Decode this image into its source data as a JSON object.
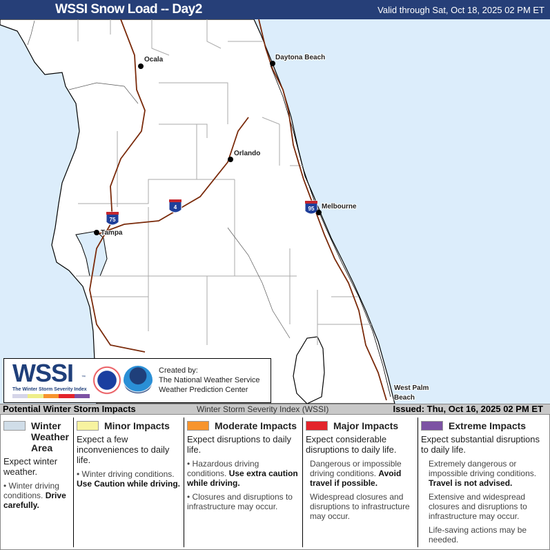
{
  "header": {
    "title": "WSSI Snow Load -- Day2",
    "valid": "Valid through Sat, Oct 18, 2025 02 PM ET"
  },
  "map": {
    "colors": {
      "water": "#dcedfb",
      "land": "#ffffff",
      "interstate": "#7a2a0a",
      "county": "#aaaaaa"
    },
    "cities": [
      "Ocala",
      "Daytona Beach",
      "Orlando",
      "Melbourne",
      "Tampa",
      "West Palm",
      "Beach"
    ],
    "shields": [
      "75",
      "4",
      "95"
    ]
  },
  "logo": {
    "wssi": "WSSI",
    "subtitle": "The Winter Storm Severity Index",
    "tm": "™",
    "created_by": "Created by:",
    "org1": "The National Weather Service",
    "org2": "Weather Prediction Center",
    "colors": [
      "#d5d5e8",
      "#eeee88",
      "#f7942d",
      "#e3242b",
      "#7c52a3"
    ]
  },
  "bar": {
    "left": "Potential Winter Storm Impacts",
    "middle": "Winter Storm Severity Index (WSSI)",
    "right": "Issued: Thu, Oct 16, 2025 02 PM ET"
  },
  "legend": [
    {
      "title": "Winter Weather Area",
      "color": "#d0dde8",
      "expect": "Expect winter weather.",
      "b1": "Winter driving conditions.",
      "b1b": "Drive carefully."
    },
    {
      "title": "Minor Impacts",
      "color": "#f7f3a0",
      "expect": "Expect a few inconveniences to daily life.",
      "b1": "Winter driving conditions.",
      "b1b": "Use Caution while driving."
    },
    {
      "title": "Moderate Impacts",
      "color": "#f7942d",
      "expect": "Expect disruptions to daily life.",
      "b1": "Hazardous driving conditions.",
      "b1b": "Use extra caution while driving.",
      "b2": "Closures and disruptions to infrastructure may occur."
    },
    {
      "title": "Major Impacts",
      "color": "#e3242b",
      "expect": "Expect considerable disruptions to daily life.",
      "b1": "Dangerous or impossible driving conditions.",
      "b1b": "Avoid travel if possible.",
      "b2": "Widespread closures and disruptions to infrastructure may occur."
    },
    {
      "title": "Extreme Impacts",
      "color": "#7c52a3",
      "expect": "Expect substantial disruptions to daily life.",
      "b1": "Extremely dangerous or impossible driving conditions.",
      "b1b": "Travel is not advised.",
      "b2": "Extensive and widespread closures and disruptions to infrastructure may occur.",
      "b3": "Life-saving actions may be needed."
    }
  ]
}
